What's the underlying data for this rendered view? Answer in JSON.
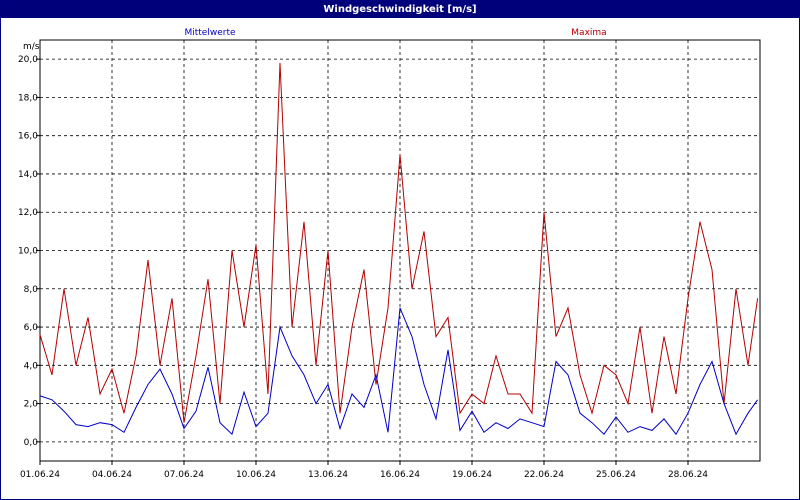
{
  "title": "Windgeschwindigkeit [m/s]",
  "chart_data": {
    "type": "line",
    "title": "Windgeschwindigkeit [m/s]",
    "ylabel": "m/s",
    "xlabel": "",
    "ylim": [
      -1,
      21
    ],
    "xlim": [
      0,
      30
    ],
    "y_ticks": [
      "0,0",
      "2,0",
      "4,0",
      "6,0",
      "8,0",
      "10,0",
      "12,0",
      "14,0",
      "16,0",
      "18,0",
      "20,0"
    ],
    "y_tick_values": [
      0,
      2,
      4,
      6,
      8,
      10,
      12,
      14,
      16,
      18,
      20
    ],
    "x_ticks": [
      "01.06.24",
      "04.06.24",
      "07.06.24",
      "10.06.24",
      "13.06.24",
      "16.06.24",
      "19.06.24",
      "22.06.24",
      "25.06.24",
      "28.06.24"
    ],
    "x_tick_values": [
      0,
      3,
      6,
      9,
      12,
      15,
      18,
      21,
      24,
      27
    ],
    "grid": true,
    "legend_placement": "top",
    "series": [
      {
        "name": "Mittelwerte",
        "color": "#0000c8",
        "x": [
          0,
          0.5,
          1,
          1.5,
          2,
          2.5,
          3,
          3.5,
          4,
          4.5,
          5,
          5.5,
          6,
          6.5,
          7,
          7.5,
          8,
          8.5,
          9,
          9.5,
          10,
          10.5,
          11,
          11.5,
          12,
          12.5,
          13,
          13.5,
          14,
          14.5,
          15,
          15.5,
          16,
          16.5,
          17,
          17.5,
          18,
          18.5,
          19,
          19.5,
          20,
          20.5,
          21,
          21.5,
          22,
          22.5,
          23,
          23.5,
          24,
          24.5,
          25,
          25.5,
          26,
          26.5,
          27,
          27.5,
          28,
          28.5,
          29,
          29.5,
          29.9
        ],
        "values": [
          2.4,
          2.2,
          1.6,
          0.9,
          0.8,
          1.0,
          0.9,
          0.5,
          1.8,
          3.0,
          3.8,
          2.5,
          0.7,
          1.6,
          3.9,
          1.0,
          0.4,
          2.6,
          0.8,
          1.5,
          6.0,
          4.5,
          3.5,
          2.0,
          3.0,
          0.7,
          2.5,
          1.8,
          3.5,
          0.5,
          7.0,
          5.5,
          3.0,
          1.2,
          4.8,
          0.6,
          1.6,
          0.5,
          1.0,
          0.7,
          1.2,
          1.0,
          0.8,
          4.2,
          3.5,
          1.5,
          1.0,
          0.4,
          1.3,
          0.5,
          0.8,
          0.6,
          1.2,
          0.4,
          1.5,
          3.0,
          4.2,
          2.0,
          0.4,
          1.5,
          2.2
        ]
      },
      {
        "name": "Maxima",
        "color": "#b40000",
        "x": [
          0,
          0.5,
          1,
          1.5,
          2,
          2.5,
          3,
          3.5,
          4,
          4.5,
          5,
          5.5,
          6,
          6.5,
          7,
          7.5,
          8,
          8.5,
          9,
          9.5,
          10,
          10.5,
          11,
          11.5,
          12,
          12.5,
          13,
          13.5,
          14,
          14.5,
          15,
          15.5,
          16,
          16.5,
          17,
          17.5,
          18,
          18.5,
          19,
          19.5,
          20,
          20.5,
          21,
          21.5,
          22,
          22.5,
          23,
          23.5,
          24,
          24.5,
          25,
          25.5,
          26,
          26.5,
          27,
          27.5,
          28,
          28.5,
          29,
          29.5,
          29.9
        ],
        "values": [
          5.6,
          3.5,
          8.0,
          4.0,
          6.5,
          2.5,
          3.8,
          1.5,
          4.5,
          9.5,
          4.0,
          7.5,
          1.0,
          4.5,
          8.5,
          2.0,
          10.0,
          6.0,
          10.3,
          2.5,
          19.8,
          6.0,
          11.5,
          4.0,
          10.0,
          1.5,
          6.0,
          9.0,
          3.0,
          7.0,
          15.0,
          8.0,
          11.0,
          5.5,
          6.5,
          1.5,
          2.5,
          2.0,
          4.5,
          2.5,
          2.5,
          1.5,
          12.0,
          5.5,
          7.0,
          3.5,
          1.5,
          4.0,
          3.5,
          2.0,
          6.0,
          1.5,
          5.5,
          2.5,
          7.5,
          11.5,
          9.0,
          2.0,
          8.0,
          4.0,
          7.5
        ]
      }
    ]
  }
}
